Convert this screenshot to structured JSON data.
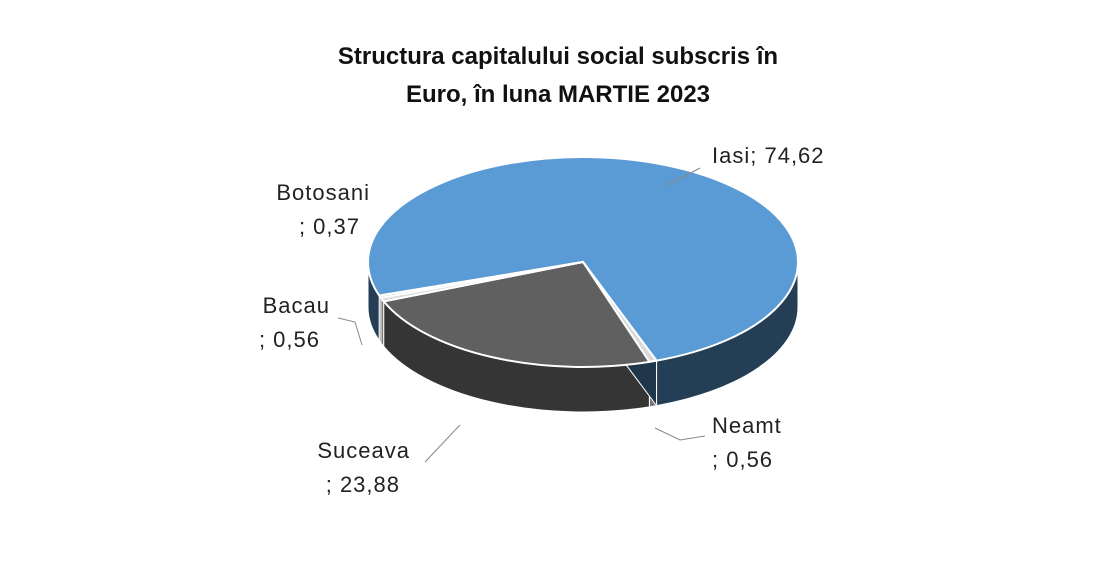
{
  "chart_data": {
    "type": "pie",
    "title": "Structura capitalului social subscris în Euro, în luna MARTIE 2023",
    "categories": [
      "Iasi",
      "Neamt",
      "Suceava",
      "Bacau",
      "Botosani"
    ],
    "values": [
      74.62,
      0.56,
      23.88,
      0.56,
      0.37
    ],
    "value_labels": [
      "; 74,62",
      "; 0,56",
      "; 23,88",
      "; 0,56",
      "; 0,37"
    ],
    "colors": [
      "#5b9bd5",
      "#d9d9d9",
      "#606060",
      "#d9d9d9",
      "#d9d9d9"
    ]
  }
}
